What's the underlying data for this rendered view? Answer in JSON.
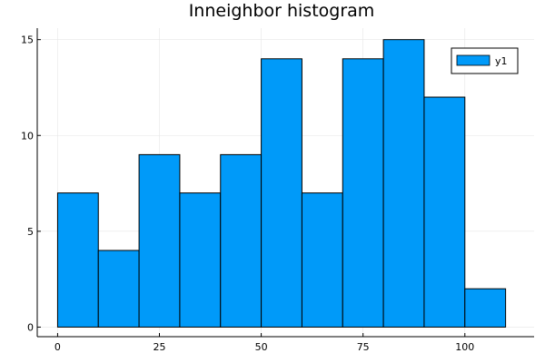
{
  "chart_data": {
    "type": "bar",
    "title": "Inneighbor histogram",
    "xlabel": "",
    "ylabel": "",
    "bin_edges": [
      0,
      10,
      20,
      30,
      40,
      50,
      60,
      70,
      80,
      90,
      100,
      110
    ],
    "series": [
      {
        "name": "y1",
        "values": [
          7,
          4,
          9,
          7,
          9,
          14,
          7,
          14,
          15,
          12,
          2
        ],
        "color": "#009AF9"
      }
    ],
    "xlim": [
      -5,
      117
    ],
    "ylim": [
      -0.5,
      15.6
    ],
    "xticks": [
      0,
      25,
      50,
      75,
      100
    ],
    "xtick_labels": [
      "0",
      "25",
      "50",
      "75",
      "100"
    ],
    "yticks": [
      0,
      5,
      10,
      15
    ],
    "ytick_labels": [
      "0",
      "5",
      "10",
      "15"
    ],
    "grid": true,
    "legend_position": "top-right"
  }
}
